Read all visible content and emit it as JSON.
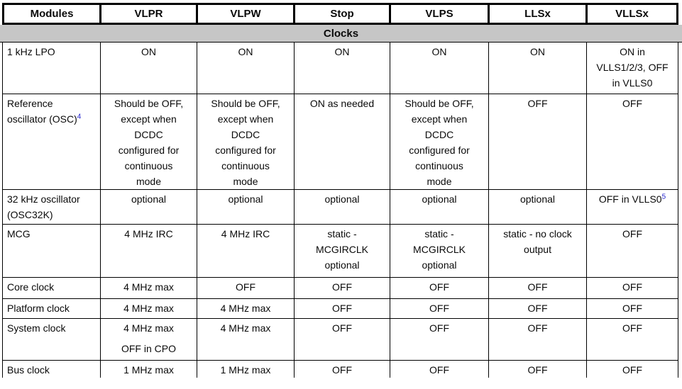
{
  "table": {
    "columns": [
      "Modules",
      "VLPR",
      "VLPW",
      "Stop",
      "VLPS",
      "LLSx",
      "VLLSx"
    ],
    "section_label": "Clocks",
    "rows": [
      {
        "module": {
          "lines": [
            "1 kHz LPO"
          ]
        },
        "cells": [
          [
            "ON"
          ],
          [
            "ON"
          ],
          [
            "ON"
          ],
          [
            "ON"
          ],
          [
            "ON"
          ],
          [
            "ON in",
            "VLLS1/2/3, OFF",
            "in VLLS0"
          ]
        ]
      },
      {
        "module": {
          "lines": [
            "Reference",
            "oscillator (OSC)"
          ],
          "sup": "4"
        },
        "cells": [
          [
            "Should be OFF,",
            "except when",
            "DCDC",
            "configured for",
            "continuous",
            "mode"
          ],
          [
            "Should be OFF,",
            "except when",
            "DCDC",
            "configured for",
            "continuous",
            "mode"
          ],
          [
            "ON as needed"
          ],
          [
            "Should be OFF,",
            "except when",
            "DCDC",
            "configured for",
            "continuous",
            "mode"
          ],
          [
            "OFF"
          ],
          [
            "OFF"
          ]
        ]
      },
      {
        "module": {
          "lines": [
            "32 kHz oscillator",
            "(OSC32K)"
          ]
        },
        "cells": [
          [
            "optional"
          ],
          [
            "optional"
          ],
          [
            "optional"
          ],
          [
            "optional"
          ],
          [
            "optional"
          ],
          {
            "lines": [
              "OFF in VLLS0"
            ],
            "sup": "5"
          }
        ]
      },
      {
        "module": {
          "lines": [
            "MCG"
          ]
        },
        "cells": [
          [
            "4 MHz IRC"
          ],
          [
            "4 MHz IRC"
          ],
          [
            "static -",
            "MCGIRCLK",
            "optional"
          ],
          [
            "static -",
            "MCGIRCLK",
            "optional"
          ],
          [
            "static - no clock",
            "output"
          ],
          [
            "OFF"
          ]
        ]
      },
      {
        "module": {
          "lines": [
            "Core clock"
          ]
        },
        "cells": [
          [
            "4 MHz max"
          ],
          [
            "OFF"
          ],
          [
            "OFF"
          ],
          [
            "OFF"
          ],
          [
            "OFF"
          ],
          [
            "OFF"
          ]
        ]
      },
      {
        "module": {
          "lines": [
            "Platform clock"
          ]
        },
        "cells": [
          [
            "4 MHz max"
          ],
          [
            "4 MHz max"
          ],
          [
            "OFF"
          ],
          [
            "OFF"
          ],
          [
            "OFF"
          ],
          [
            "OFF"
          ]
        ]
      },
      {
        "module": {
          "lines": [
            "System clock"
          ]
        },
        "cells": [
          [
            "4 MHz max",
            "OFF in CPO"
          ],
          [
            "4 MHz max"
          ],
          [
            "OFF"
          ],
          [
            "OFF"
          ],
          [
            "OFF"
          ],
          [
            "OFF"
          ]
        ]
      },
      {
        "module": {
          "lines": [
            "Bus clock"
          ]
        },
        "cells": [
          [
            "1 MHz max"
          ],
          [
            "1 MHz max"
          ],
          [
            "OFF"
          ],
          [
            "OFF"
          ],
          [
            "OFF"
          ],
          [
            "OFF"
          ]
        ]
      }
    ],
    "colors": {
      "section_bg": "#c6c6c6",
      "border": "#000000",
      "footnote_ref": "#2222cc"
    }
  }
}
